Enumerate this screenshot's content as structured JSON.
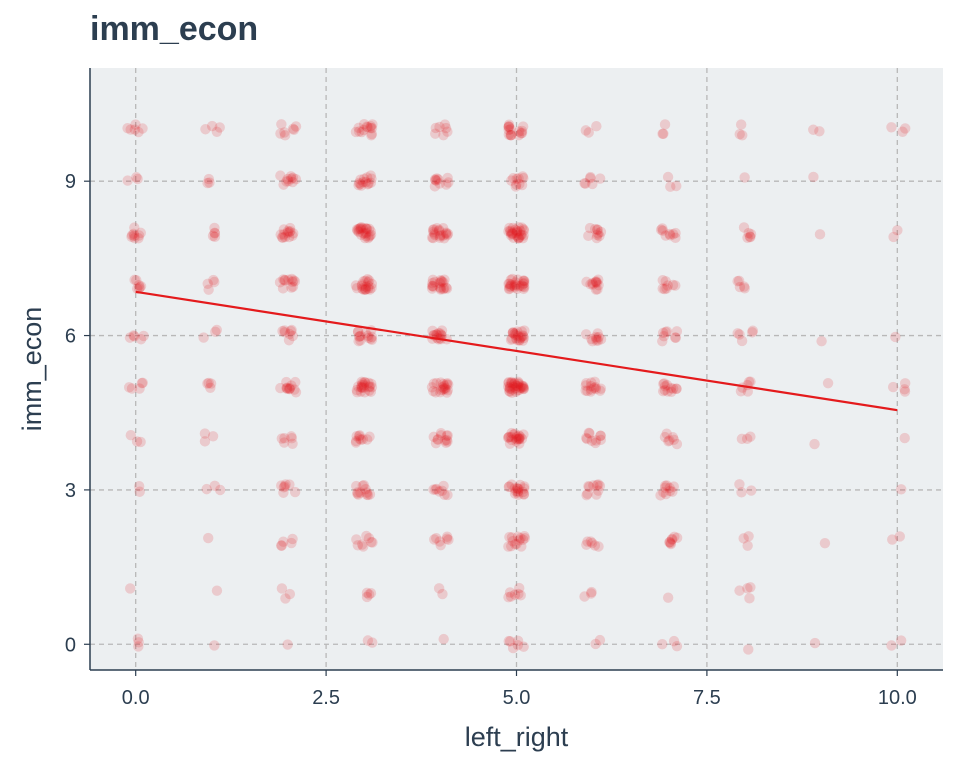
{
  "chart_data": {
    "type": "scatter",
    "title": "imm_econ",
    "xlabel": "left_right",
    "ylabel": "imm_econ",
    "xlim": [
      -0.6,
      10.6
    ],
    "ylim": [
      -0.5,
      11.2
    ],
    "x_ticks": [
      0,
      2.5,
      5,
      7.5,
      10
    ],
    "x_tick_labels": [
      "0.0",
      "2.5",
      "5.0",
      "7.5",
      "10.0"
    ],
    "y_ticks": [
      0,
      3,
      6,
      9
    ],
    "y_tick_labels": [
      "0",
      "3",
      "6",
      "9"
    ],
    "grid": true,
    "background": "#eceff1",
    "point_color": "#e41a1c",
    "line_color": "#e41a1c",
    "grid_color": "#b8b8b8",
    "axis_color": "#2c3e50",
    "jitter": true,
    "points": [
      {
        "x": 0,
        "y": 0,
        "n": 3
      },
      {
        "x": 0,
        "y": 1,
        "n": 1
      },
      {
        "x": 0,
        "y": 2,
        "n": 0
      },
      {
        "x": 0,
        "y": 3,
        "n": 2
      },
      {
        "x": 0,
        "y": 4,
        "n": 3
      },
      {
        "x": 0,
        "y": 5,
        "n": 5
      },
      {
        "x": 0,
        "y": 6,
        "n": 5
      },
      {
        "x": 0,
        "y": 7,
        "n": 7
      },
      {
        "x": 0,
        "y": 8,
        "n": 9
      },
      {
        "x": 0,
        "y": 9,
        "n": 3
      },
      {
        "x": 0,
        "y": 10,
        "n": 6
      },
      {
        "x": 1,
        "y": 0,
        "n": 1
      },
      {
        "x": 1,
        "y": 1,
        "n": 1
      },
      {
        "x": 1,
        "y": 2,
        "n": 1
      },
      {
        "x": 1,
        "y": 3,
        "n": 3
      },
      {
        "x": 1,
        "y": 4,
        "n": 3
      },
      {
        "x": 1,
        "y": 5,
        "n": 4
      },
      {
        "x": 1,
        "y": 6,
        "n": 3
      },
      {
        "x": 1,
        "y": 7,
        "n": 4
      },
      {
        "x": 1,
        "y": 8,
        "n": 5
      },
      {
        "x": 1,
        "y": 9,
        "n": 3
      },
      {
        "x": 1,
        "y": 10,
        "n": 4
      },
      {
        "x": 2,
        "y": 0,
        "n": 1
      },
      {
        "x": 2,
        "y": 1,
        "n": 3
      },
      {
        "x": 2,
        "y": 2,
        "n": 5
      },
      {
        "x": 2,
        "y": 3,
        "n": 7
      },
      {
        "x": 2,
        "y": 4,
        "n": 6
      },
      {
        "x": 2,
        "y": 5,
        "n": 12
      },
      {
        "x": 2,
        "y": 6,
        "n": 8
      },
      {
        "x": 2,
        "y": 7,
        "n": 12
      },
      {
        "x": 2,
        "y": 8,
        "n": 14
      },
      {
        "x": 2,
        "y": 9,
        "n": 10
      },
      {
        "x": 2,
        "y": 10,
        "n": 7
      },
      {
        "x": 3,
        "y": 0,
        "n": 2
      },
      {
        "x": 3,
        "y": 1,
        "n": 4
      },
      {
        "x": 3,
        "y": 2,
        "n": 8
      },
      {
        "x": 3,
        "y": 3,
        "n": 12
      },
      {
        "x": 3,
        "y": 4,
        "n": 10
      },
      {
        "x": 3,
        "y": 5,
        "n": 22
      },
      {
        "x": 3,
        "y": 6,
        "n": 14
      },
      {
        "x": 3,
        "y": 7,
        "n": 20
      },
      {
        "x": 3,
        "y": 8,
        "n": 24
      },
      {
        "x": 3,
        "y": 9,
        "n": 14
      },
      {
        "x": 3,
        "y": 10,
        "n": 14
      },
      {
        "x": 4,
        "y": 0,
        "n": 1
      },
      {
        "x": 4,
        "y": 1,
        "n": 2
      },
      {
        "x": 4,
        "y": 2,
        "n": 7
      },
      {
        "x": 4,
        "y": 3,
        "n": 8
      },
      {
        "x": 4,
        "y": 4,
        "n": 12
      },
      {
        "x": 4,
        "y": 5,
        "n": 20
      },
      {
        "x": 4,
        "y": 6,
        "n": 16
      },
      {
        "x": 4,
        "y": 7,
        "n": 20
      },
      {
        "x": 4,
        "y": 8,
        "n": 20
      },
      {
        "x": 4,
        "y": 9,
        "n": 10
      },
      {
        "x": 4,
        "y": 10,
        "n": 7
      },
      {
        "x": 5,
        "y": 0,
        "n": 6
      },
      {
        "x": 5,
        "y": 1,
        "n": 7
      },
      {
        "x": 5,
        "y": 2,
        "n": 14
      },
      {
        "x": 5,
        "y": 3,
        "n": 18
      },
      {
        "x": 5,
        "y": 4,
        "n": 22
      },
      {
        "x": 5,
        "y": 5,
        "n": 34
      },
      {
        "x": 5,
        "y": 6,
        "n": 22
      },
      {
        "x": 5,
        "y": 7,
        "n": 26
      },
      {
        "x": 5,
        "y": 8,
        "n": 28
      },
      {
        "x": 5,
        "y": 9,
        "n": 10
      },
      {
        "x": 5,
        "y": 10,
        "n": 16
      },
      {
        "x": 6,
        "y": 0,
        "n": 2
      },
      {
        "x": 6,
        "y": 1,
        "n": 3
      },
      {
        "x": 6,
        "y": 2,
        "n": 6
      },
      {
        "x": 6,
        "y": 3,
        "n": 10
      },
      {
        "x": 6,
        "y": 4,
        "n": 10
      },
      {
        "x": 6,
        "y": 5,
        "n": 14
      },
      {
        "x": 6,
        "y": 6,
        "n": 10
      },
      {
        "x": 6,
        "y": 7,
        "n": 12
      },
      {
        "x": 6,
        "y": 8,
        "n": 10
      },
      {
        "x": 6,
        "y": 9,
        "n": 6
      },
      {
        "x": 6,
        "y": 10,
        "n": 3
      },
      {
        "x": 7,
        "y": 0,
        "n": 3
      },
      {
        "x": 7,
        "y": 1,
        "n": 1
      },
      {
        "x": 7,
        "y": 2,
        "n": 8
      },
      {
        "x": 7,
        "y": 3,
        "n": 10
      },
      {
        "x": 7,
        "y": 4,
        "n": 7
      },
      {
        "x": 7,
        "y": 5,
        "n": 12
      },
      {
        "x": 7,
        "y": 6,
        "n": 8
      },
      {
        "x": 7,
        "y": 7,
        "n": 8
      },
      {
        "x": 7,
        "y": 8,
        "n": 9
      },
      {
        "x": 7,
        "y": 9,
        "n": 3
      },
      {
        "x": 7,
        "y": 10,
        "n": 3
      },
      {
        "x": 8,
        "y": 0,
        "n": 1
      },
      {
        "x": 8,
        "y": 1,
        "n": 4
      },
      {
        "x": 8,
        "y": 2,
        "n": 3
      },
      {
        "x": 8,
        "y": 3,
        "n": 3
      },
      {
        "x": 8,
        "y": 4,
        "n": 3
      },
      {
        "x": 8,
        "y": 5,
        "n": 6
      },
      {
        "x": 8,
        "y": 6,
        "n": 5
      },
      {
        "x": 8,
        "y": 7,
        "n": 5
      },
      {
        "x": 8,
        "y": 8,
        "n": 6
      },
      {
        "x": 8,
        "y": 9,
        "n": 1
      },
      {
        "x": 8,
        "y": 10,
        "n": 3
      },
      {
        "x": 9,
        "y": 0,
        "n": 1
      },
      {
        "x": 9,
        "y": 1,
        "n": 0
      },
      {
        "x": 9,
        "y": 2,
        "n": 1
      },
      {
        "x": 9,
        "y": 3,
        "n": 0
      },
      {
        "x": 9,
        "y": 4,
        "n": 1
      },
      {
        "x": 9,
        "y": 5,
        "n": 1
      },
      {
        "x": 9,
        "y": 6,
        "n": 1
      },
      {
        "x": 9,
        "y": 7,
        "n": 0
      },
      {
        "x": 9,
        "y": 8,
        "n": 1
      },
      {
        "x": 9,
        "y": 9,
        "n": 1
      },
      {
        "x": 9,
        "y": 10,
        "n": 2
      },
      {
        "x": 10,
        "y": 0,
        "n": 2
      },
      {
        "x": 10,
        "y": 1,
        "n": 0
      },
      {
        "x": 10,
        "y": 2,
        "n": 2
      },
      {
        "x": 10,
        "y": 3,
        "n": 1
      },
      {
        "x": 10,
        "y": 4,
        "n": 1
      },
      {
        "x": 10,
        "y": 5,
        "n": 4
      },
      {
        "x": 10,
        "y": 6,
        "n": 1
      },
      {
        "x": 10,
        "y": 7,
        "n": 0
      },
      {
        "x": 10,
        "y": 8,
        "n": 2
      },
      {
        "x": 10,
        "y": 9,
        "n": 0
      },
      {
        "x": 10,
        "y": 10,
        "n": 3
      }
    ],
    "trend_line": {
      "x": [
        0,
        10
      ],
      "y": [
        6.85,
        4.55
      ]
    }
  }
}
